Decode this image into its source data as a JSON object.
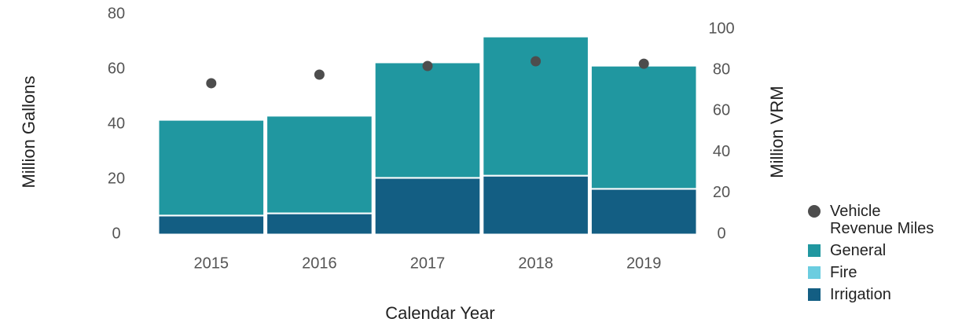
{
  "chart_data": {
    "type": "bar",
    "stacked": true,
    "x_label": "Calendar Year",
    "y_label": "Million Gallons",
    "y2_label": "Million VRM",
    "categories": [
      "2015",
      "2016",
      "2017",
      "2018",
      "2019"
    ],
    "series": [
      {
        "name": "Vehicle Revenue Miles",
        "color": "#4d4d4d",
        "type": "scatter",
        "axis": "y2",
        "values": [
          73.6,
          77.8,
          82.0,
          84.3,
          83.1
        ]
      },
      {
        "name": "General",
        "color": "#2097a0",
        "values": [
          34.5,
          35.2,
          41.7,
          50.3,
          44.5
        ]
      },
      {
        "name": "Fire",
        "color": "#6bcde0",
        "values": [
          0.3,
          0.3,
          0.3,
          0.3,
          0.3
        ]
      },
      {
        "name": "Irrigation",
        "color": "#135e83",
        "values": [
          6.6,
          7.4,
          20.3,
          21.1,
          16.3
        ]
      }
    ],
    "stack_order": [
      3,
      2,
      1
    ],
    "ylim": [
      0,
      80
    ],
    "yticks": [
      0,
      20,
      40,
      60,
      80
    ],
    "y2lim": [
      0,
      107.3
    ],
    "y2ticks": [
      0,
      20,
      40,
      60,
      80,
      100
    ],
    "grid": false,
    "legend": "lower right"
  }
}
